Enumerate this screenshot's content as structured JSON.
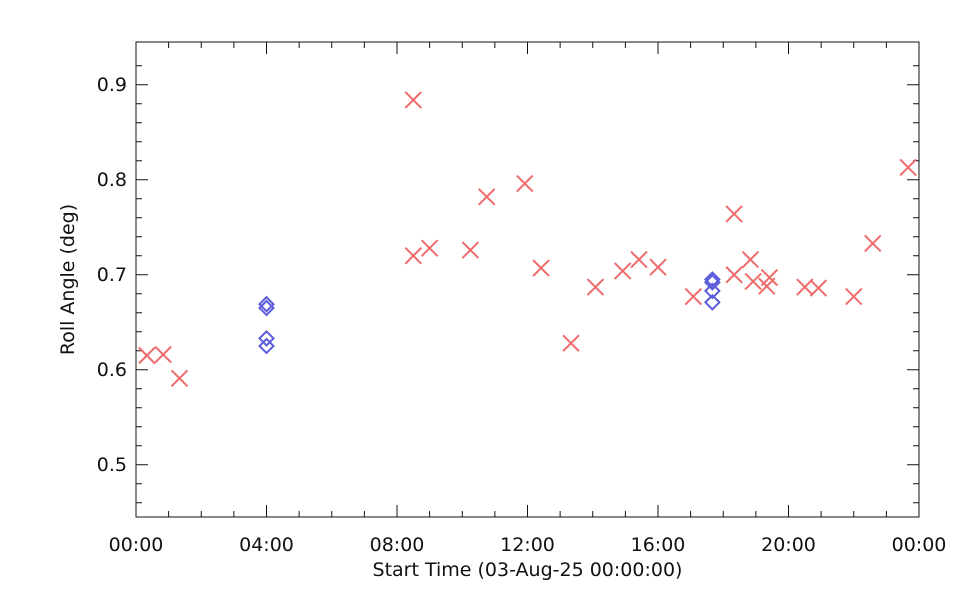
{
  "chart_data": {
    "type": "scatter",
    "title": "",
    "xlabel": "Start Time (03-Aug-25 00:00:00)",
    "ylabel": "Roll Angle (deg)",
    "xlim": [
      "00:00",
      "24:00"
    ],
    "ylim": [
      0.445,
      0.945
    ],
    "x_ticks": [
      "00:00",
      "04:00",
      "08:00",
      "12:00",
      "16:00",
      "20:00",
      "00:00"
    ],
    "y_ticks": [
      "0.5",
      "0.6",
      "0.7",
      "0.8",
      "0.9"
    ],
    "grid": false,
    "series": [
      {
        "marker": "x",
        "color": "#f06c6c",
        "points": [
          {
            "x": "00:20",
            "y": 0.615
          },
          {
            "x": "00:50",
            "y": 0.616
          },
          {
            "x": "01:20",
            "y": 0.591
          },
          {
            "x": "08:30",
            "y": 0.884
          },
          {
            "x": "08:30",
            "y": 0.72
          },
          {
            "x": "09:00",
            "y": 0.728
          },
          {
            "x": "10:15",
            "y": 0.726
          },
          {
            "x": "10:45",
            "y": 0.782
          },
          {
            "x": "11:55",
            "y": 0.796
          },
          {
            "x": "12:25",
            "y": 0.707
          },
          {
            "x": "13:20",
            "y": 0.628
          },
          {
            "x": "14:05",
            "y": 0.687
          },
          {
            "x": "14:55",
            "y": 0.704
          },
          {
            "x": "15:25",
            "y": 0.716
          },
          {
            "x": "16:00",
            "y": 0.708
          },
          {
            "x": "17:05",
            "y": 0.677
          },
          {
            "x": "18:20",
            "y": 0.764
          },
          {
            "x": "18:20",
            "y": 0.7
          },
          {
            "x": "18:50",
            "y": 0.716
          },
          {
            "x": "18:55",
            "y": 0.693
          },
          {
            "x": "19:20",
            "y": 0.688
          },
          {
            "x": "19:25",
            "y": 0.697
          },
          {
            "x": "20:30",
            "y": 0.687
          },
          {
            "x": "20:55",
            "y": 0.686
          },
          {
            "x": "22:00",
            "y": 0.677
          },
          {
            "x": "22:35",
            "y": 0.733
          },
          {
            "x": "23:40",
            "y": 0.813
          }
        ]
      },
      {
        "marker": "diamond",
        "color": "#5b5bdc",
        "points": [
          {
            "x": "04:00",
            "y": 0.669
          },
          {
            "x": "04:00",
            "y": 0.665
          },
          {
            "x": "04:00",
            "y": 0.633
          },
          {
            "x": "04:00",
            "y": 0.625
          },
          {
            "x": "17:40",
            "y": 0.695
          },
          {
            "x": "17:40",
            "y": 0.692
          },
          {
            "x": "17:40",
            "y": 0.683
          },
          {
            "x": "17:40",
            "y": 0.671
          }
        ]
      }
    ]
  }
}
